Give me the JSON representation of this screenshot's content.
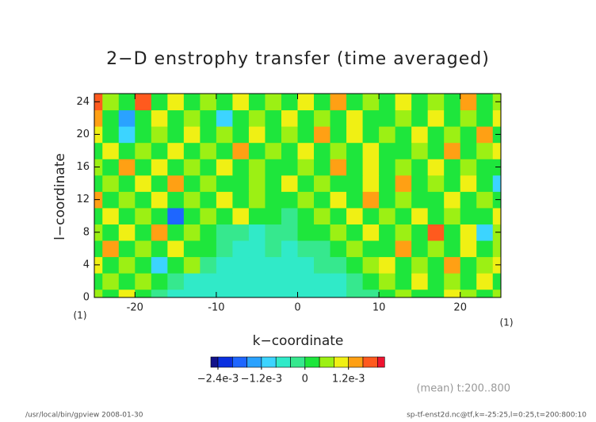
{
  "chart_data": {
    "type": "heatmap",
    "title": "2−D enstrophy transfer (time averaged)",
    "x_label": "k−coordinate",
    "y_label": "l−coordinate",
    "x_unit": "(1)",
    "y_unit": "(1)",
    "note": "(mean) t:200..800",
    "footer_left": "/usr/local/bin/gpview   2008-01-30",
    "footer_right": "sp-tf-enst2d.nc@tf,k=-25:25,l=0:25,t=200:800:10",
    "xlim": [
      -25,
      25
    ],
    "ylim": [
      0,
      25
    ],
    "xticks": [
      -20,
      -10,
      0,
      10,
      20
    ],
    "yticks": [
      0,
      4,
      8,
      12,
      16,
      20,
      24
    ],
    "x": [
      -25,
      -23,
      -21,
      -19,
      -17,
      -15,
      -13,
      -11,
      -9,
      -7,
      -5,
      -3,
      -1,
      1,
      3,
      5,
      7,
      9,
      11,
      13,
      15,
      17,
      19,
      21,
      23,
      25
    ],
    "y": [
      0,
      2,
      4,
      6,
      8,
      10,
      12,
      14,
      16,
      18,
      20,
      22,
      24
    ],
    "z": [
      [
        0.0006,
        0.0002,
        0.001,
        0.0002,
        -0.0002,
        -0.0006,
        -0.0006,
        -0.0006,
        -0.0006,
        -0.0006,
        -0.0006,
        -0.0006,
        -0.0006,
        -0.0006,
        -0.0006,
        -0.0006,
        -0.0002,
        -0.0002,
        0.0002,
        0.0006,
        0.0002,
        0.0002,
        0.001,
        0.0006,
        0.0002,
        0.0006
      ],
      [
        0.0002,
        0.0006,
        0.0002,
        0.0006,
        0.0002,
        -0.0002,
        -0.0006,
        -0.0006,
        -0.0006,
        -0.0006,
        -0.0006,
        -0.0006,
        -0.0006,
        -0.0006,
        -0.0006,
        -0.0006,
        -0.0002,
        0.0002,
        0.0006,
        0.0002,
        0.001,
        0.0002,
        0.0006,
        0.0002,
        0.001,
        0.0002
      ],
      [
        0.001,
        0.0002,
        0.0006,
        0.0002,
        -0.001,
        0.0002,
        0.0006,
        -0.0002,
        -0.0006,
        -0.0006,
        -0.0006,
        -0.0006,
        -0.0006,
        -0.0006,
        -0.0002,
        -0.0002,
        0.0002,
        0.0006,
        0.001,
        0.0002,
        0.0006,
        0.0002,
        0.0014,
        0.0002,
        0.0006,
        0.001
      ],
      [
        0.0002,
        0.0014,
        0.0002,
        0.0006,
        0.0002,
        0.001,
        0.0002,
        0.0002,
        -0.0002,
        -0.0006,
        -0.0006,
        -0.0002,
        -0.0006,
        -0.0002,
        -0.0002,
        0.0002,
        0.0006,
        0.0002,
        0.0002,
        0.0014,
        0.0002,
        0.0006,
        0.0002,
        0.001,
        0.0002,
        0.0006
      ],
      [
        0.0006,
        0.0002,
        0.001,
        0.0002,
        0.0014,
        0.0002,
        0.0006,
        0.0002,
        -0.0002,
        -0.0002,
        -0.0006,
        -0.0002,
        -0.0002,
        0.0002,
        0.0002,
        0.0006,
        0.0002,
        0.001,
        0.0002,
        0.0006,
        0.0002,
        0.0018,
        0.0002,
        0.001,
        -0.001,
        0.0006
      ],
      [
        0.0002,
        0.001,
        0.0002,
        0.0006,
        0.0002,
        -0.002,
        0.0002,
        0.0006,
        0.0002,
        0.001,
        0.0002,
        0.0002,
        -0.0002,
        0.0002,
        0.0006,
        0.0002,
        0.001,
        0.0002,
        0.0006,
        0.0002,
        0.001,
        0.0002,
        0.0006,
        0.0002,
        0.0002,
        0.001
      ],
      [
        0.0014,
        0.0002,
        0.0006,
        0.0002,
        0.001,
        0.0002,
        0.0006,
        0.0002,
        0.001,
        0.0002,
        0.0006,
        0.0002,
        0.0002,
        0.0006,
        0.0002,
        0.001,
        0.0002,
        0.0014,
        0.0002,
        0.0006,
        0.0002,
        0.0002,
        0.001,
        0.0002,
        0.0006,
        0.0002
      ],
      [
        0.0002,
        0.0006,
        0.0002,
        0.001,
        0.0002,
        0.0014,
        0.0002,
        0.0006,
        0.0002,
        0.0002,
        0.0006,
        0.0002,
        0.001,
        0.0002,
        0.0006,
        0.0002,
        0.0002,
        0.001,
        0.0002,
        0.0014,
        0.0002,
        0.0006,
        0.0002,
        0.001,
        0.0002,
        -0.001
      ],
      [
        0.0006,
        0.0002,
        0.0014,
        0.0002,
        0.001,
        0.0002,
        0.0006,
        0.0002,
        0.001,
        0.0002,
        0.0006,
        0.0002,
        0.0002,
        0.0006,
        0.0002,
        0.0014,
        0.0002,
        0.001,
        0.0002,
        0.0006,
        0.0002,
        0.001,
        0.0002,
        0.0006,
        0.0002,
        0.0002
      ],
      [
        0.0002,
        0.001,
        0.0002,
        0.0006,
        0.0002,
        0.001,
        0.0002,
        0.0006,
        0.0002,
        0.0014,
        0.0002,
        0.0006,
        0.0002,
        0.001,
        0.0002,
        0.0006,
        0.0002,
        0.001,
        0.0002,
        0.0002,
        0.0006,
        0.0002,
        0.0014,
        0.0002,
        0.0006,
        0.001
      ],
      [
        0.001,
        0.0002,
        -0.001,
        0.0002,
        0.0006,
        0.0002,
        0.001,
        0.0002,
        0.0006,
        0.0002,
        0.001,
        0.0002,
        0.0006,
        0.0002,
        0.0014,
        0.0002,
        0.001,
        0.0002,
        0.0006,
        0.0002,
        0.001,
        0.0002,
        0.0006,
        0.0002,
        0.0014,
        0.0002
      ],
      [
        0.0014,
        0.0002,
        -0.0014,
        0.0002,
        0.001,
        0.0002,
        0.0006,
        0.0002,
        -0.001,
        0.0002,
        0.0006,
        0.0002,
        0.001,
        0.0002,
        0.0006,
        0.0002,
        0.001,
        0.0002,
        0.0002,
        0.0006,
        0.0002,
        0.001,
        0.0002,
        0.0006,
        0.0002,
        0.001
      ],
      [
        0.0018,
        0.0006,
        0.0002,
        0.0018,
        0.0002,
        0.001,
        0.0002,
        0.0006,
        0.0002,
        0.001,
        0.0002,
        0.0006,
        0.0002,
        0.001,
        0.0002,
        0.0014,
        0.0002,
        0.0006,
        0.0002,
        0.001,
        0.0002,
        0.0006,
        0.0002,
        0.0014,
        0.0002,
        0.0006
      ]
    ],
    "colorbar": {
      "levels": [
        -0.0024,
        -0.002,
        -0.0016,
        -0.0012,
        -0.0008,
        -0.0004,
        0,
        0.0004,
        0.0008,
        0.0012,
        0.0016,
        0.002
      ],
      "colors": [
        "#12128a",
        "#0a30e0",
        "#1e66ff",
        "#2aa2ff",
        "#3cd4ff",
        "#30eac8",
        "#36e88e",
        "#1ee63c",
        "#9cf014",
        "#f0f014",
        "#ffa014",
        "#ff5a1e",
        "#ee1430"
      ],
      "ticks": [
        {
          "value": -0.0024,
          "label": "−2.4e-3"
        },
        {
          "value": -0.0012,
          "label": "−1.2e-3"
        },
        0,
        {
          "value": 0.0012,
          "label": "1.2e-3"
        }
      ]
    }
  }
}
